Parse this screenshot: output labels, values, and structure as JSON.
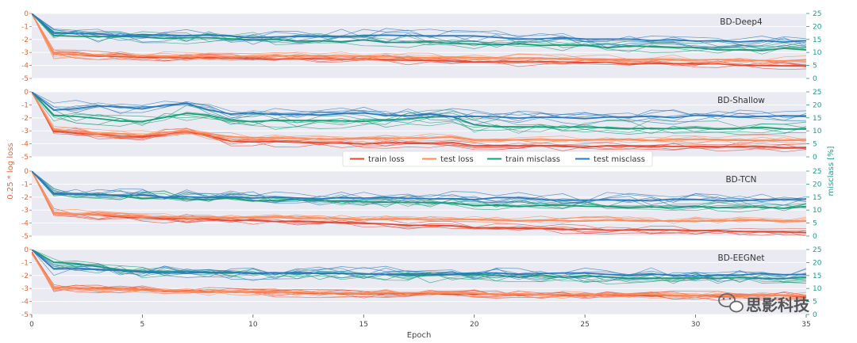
{
  "chart_data": {
    "type": "line",
    "xlabel": "Epoch",
    "ylabel_left": "0.25 * log loss",
    "ylabel_right": "misclass [%]",
    "xlim": [
      0,
      35
    ],
    "x_ticks": [
      "0",
      "5",
      "10",
      "15",
      "20",
      "25",
      "30",
      "35"
    ],
    "left_ylim": [
      -5,
      0
    ],
    "left_ticks": [
      "0",
      "-1",
      "-2",
      "-3",
      "-4",
      "-5"
    ],
    "right_ylim": [
      0,
      25
    ],
    "right_ticks": [
      "25",
      "20",
      "15",
      "10",
      "5",
      "0"
    ],
    "colors": {
      "train_loss": "#e34a33",
      "test_loss": "#fc8d59",
      "train_misclass": "#1a9e75",
      "test_misclass": "#2b7bba",
      "left_axis": "#e8663a",
      "right_axis": "#1a9e8f",
      "panel_bg": "#eaeaf2"
    },
    "legend": {
      "placement": "center, between BD-Shallow and BD-TCN",
      "entries": [
        "train loss",
        "test loss",
        "train misclass",
        "test misclass"
      ]
    },
    "panels": [
      {
        "title": "BD-Deep4",
        "series": [
          {
            "name": "train loss",
            "axis": "left",
            "x": [
              0,
              1,
              5,
              10,
              15,
              20,
              25,
              30,
              35
            ],
            "values": [
              0,
              -3.1,
              -3.4,
              -3.45,
              -3.5,
              -3.7,
              -3.8,
              -3.9,
              -4.0
            ]
          },
          {
            "name": "test loss",
            "axis": "left",
            "x": [
              0,
              1,
              5,
              10,
              15,
              20,
              25,
              30,
              35
            ],
            "values": [
              0,
              -3.1,
              -3.3,
              -3.3,
              -3.3,
              -3.4,
              -3.5,
              -3.55,
              -3.6
            ]
          },
          {
            "name": "train misclass",
            "axis": "right",
            "x": [
              0,
              1,
              5,
              10,
              15,
              20,
              25,
              30,
              35
            ],
            "values": [
              25,
              16.5,
              15.5,
              15.0,
              14.5,
              13.5,
              12.5,
              11.5,
              11.0
            ]
          },
          {
            "name": "test misclass",
            "axis": "right",
            "x": [
              0,
              1,
              5,
              10,
              15,
              20,
              25,
              30,
              35
            ],
            "values": [
              25,
              17.5,
              16.5,
              16.0,
              16.5,
              16.0,
              15.0,
              14.5,
              14.5
            ]
          }
        ]
      },
      {
        "title": "BD-Shallow",
        "series": [
          {
            "name": "train loss",
            "axis": "left",
            "x": [
              0,
              1,
              3,
              5,
              7,
              9,
              12,
              15,
              19,
              20,
              25,
              30,
              35
            ],
            "values": [
              0,
              -3.0,
              -3.3,
              -3.5,
              -3.0,
              -3.8,
              -3.9,
              -4.0,
              -3.9,
              -4.1,
              -4.2,
              -4.2,
              -4.3
            ]
          },
          {
            "name": "test loss",
            "axis": "left",
            "x": [
              0,
              1,
              3,
              5,
              7,
              9,
              12,
              15,
              19,
              20,
              25,
              30,
              35
            ],
            "values": [
              0,
              -2.9,
              -3.2,
              -3.3,
              -3.0,
              -3.5,
              -3.6,
              -3.6,
              -3.5,
              -3.7,
              -3.7,
              -3.7,
              -3.7
            ]
          },
          {
            "name": "train misclass",
            "axis": "right",
            "x": [
              0,
              1,
              3,
              5,
              7,
              9,
              12,
              15,
              19,
              20,
              25,
              30,
              35
            ],
            "values": [
              25,
              16.0,
              14.5,
              14.0,
              17.0,
              14.0,
              13.5,
              13.5,
              15.5,
              12.0,
              11.5,
              11.0,
              11.0
            ]
          },
          {
            "name": "test misclass",
            "axis": "right",
            "x": [
              0,
              1,
              3,
              5,
              7,
              9,
              12,
              15,
              19,
              20,
              25,
              30,
              35
            ],
            "values": [
              25,
              18.0,
              19.5,
              18.5,
              20.5,
              16.5,
              16.5,
              16.5,
              16.0,
              15.5,
              15.0,
              15.5,
              15.5
            ]
          }
        ]
      },
      {
        "title": "BD-TCN",
        "series": [
          {
            "name": "train loss",
            "axis": "left",
            "x": [
              0,
              1,
              5,
              10,
              15,
              20,
              25,
              30,
              35
            ],
            "values": [
              0,
              -3.2,
              -3.6,
              -3.8,
              -4.0,
              -4.3,
              -4.5,
              -4.6,
              -4.7
            ]
          },
          {
            "name": "test loss",
            "axis": "left",
            "x": [
              0,
              1,
              5,
              10,
              15,
              20,
              25,
              30,
              35
            ],
            "values": [
              0,
              -3.2,
              -3.5,
              -3.6,
              -3.7,
              -3.75,
              -3.8,
              -3.8,
              -3.8
            ]
          },
          {
            "name": "train misclass",
            "axis": "right",
            "x": [
              0,
              1,
              5,
              10,
              15,
              20,
              25,
              30,
              35
            ],
            "values": [
              25,
              16.0,
              15.0,
              14.0,
              13.0,
              12.0,
              11.5,
              11.0,
              11.0
            ]
          },
          {
            "name": "test misclass",
            "axis": "right",
            "x": [
              0,
              1,
              5,
              10,
              15,
              20,
              25,
              30,
              35
            ],
            "values": [
              25,
              16.5,
              15.5,
              15.0,
              14.5,
              14.5,
              14.0,
              14.0,
              14.0
            ]
          }
        ]
      },
      {
        "title": "BD-EEGNet",
        "series": [
          {
            "name": "train loss",
            "axis": "left",
            "x": [
              0,
              1,
              5,
              10,
              15,
              20,
              25,
              30,
              35
            ],
            "values": [
              -0.2,
              -2.9,
              -3.1,
              -3.3,
              -3.4,
              -3.45,
              -3.5,
              -3.55,
              -3.6
            ]
          },
          {
            "name": "test loss",
            "axis": "left",
            "x": [
              0,
              1,
              5,
              10,
              15,
              20,
              25,
              30,
              35
            ],
            "values": [
              -0.3,
              -2.9,
              -3.1,
              -3.3,
              -3.35,
              -3.4,
              -3.45,
              -3.5,
              -3.5
            ]
          },
          {
            "name": "train misclass",
            "axis": "right",
            "x": [
              0,
              1,
              5,
              10,
              15,
              20,
              25,
              30,
              35
            ],
            "values": [
              25,
              20.0,
              17.0,
              16.0,
              15.5,
              15.0,
              14.5,
              14.0,
              14.0
            ]
          },
          {
            "name": "test misclass",
            "axis": "right",
            "x": [
              0,
              1,
              5,
              10,
              15,
              20,
              25,
              30,
              35
            ],
            "values": [
              25,
              17.5,
              16.5,
              16.0,
              16.0,
              15.5,
              15.5,
              15.0,
              15.5
            ]
          }
        ]
      }
    ]
  },
  "watermark": {
    "text": "思影科技",
    "icon": "wechat-icon"
  }
}
